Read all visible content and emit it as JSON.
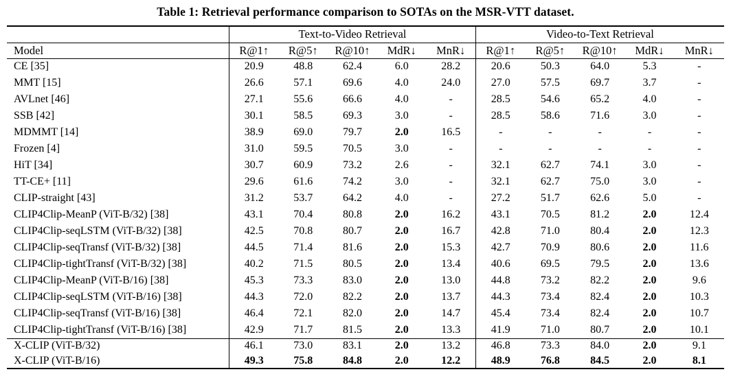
{
  "caption": "Table 1: Retrieval performance comparison to SOTAs on the MSR-VTT dataset.",
  "table": {
    "group_headers": [
      "Text-to-Video Retrieval",
      "Video-to-Text Retrieval"
    ],
    "model_header": "Model",
    "metric_headers": [
      "R@1↑",
      "R@5↑",
      "R@10↑",
      "MdR↓",
      "MnR↓"
    ],
    "missing_value": "-",
    "rows": [
      {
        "model": "CE [35]",
        "t2v": [
          "20.9",
          "48.8",
          "62.4",
          "6.0",
          "28.2"
        ],
        "v2t": [
          "20.6",
          "50.3",
          "64.0",
          "5.3",
          "-"
        ],
        "b1": [],
        "b2": []
      },
      {
        "model": "MMT [15]",
        "t2v": [
          "26.6",
          "57.1",
          "69.6",
          "4.0",
          "24.0"
        ],
        "v2t": [
          "27.0",
          "57.5",
          "69.7",
          "3.7",
          "-"
        ],
        "b1": [],
        "b2": []
      },
      {
        "model": "AVLnet [46]",
        "t2v": [
          "27.1",
          "55.6",
          "66.6",
          "4.0",
          "-"
        ],
        "v2t": [
          "28.5",
          "54.6",
          "65.2",
          "4.0",
          "-"
        ],
        "b1": [],
        "b2": []
      },
      {
        "model": "SSB [42]",
        "t2v": [
          "30.1",
          "58.5",
          "69.3",
          "3.0",
          "-"
        ],
        "v2t": [
          "28.5",
          "58.6",
          "71.6",
          "3.0",
          "-"
        ],
        "b1": [],
        "b2": []
      },
      {
        "model": "MDMMT [14]",
        "t2v": [
          "38.9",
          "69.0",
          "79.7",
          "2.0",
          "16.5"
        ],
        "v2t": [
          "-",
          "-",
          "-",
          "-",
          "-"
        ],
        "b1": [
          3
        ],
        "b2": []
      },
      {
        "model": "Frozen [4]",
        "t2v": [
          "31.0",
          "59.5",
          "70.5",
          "3.0",
          "-"
        ],
        "v2t": [
          "-",
          "-",
          "-",
          "-",
          "-"
        ],
        "b1": [],
        "b2": []
      },
      {
        "model": "HiT [34]",
        "t2v": [
          "30.7",
          "60.9",
          "73.2",
          "2.6",
          "-"
        ],
        "v2t": [
          "32.1",
          "62.7",
          "74.1",
          "3.0",
          "-"
        ],
        "b1": [],
        "b2": []
      },
      {
        "model": "TT-CE+ [11]",
        "t2v": [
          "29.6",
          "61.6",
          "74.2",
          "3.0",
          "-"
        ],
        "v2t": [
          "32.1",
          "62.7",
          "75.0",
          "3.0",
          "-"
        ],
        "b1": [],
        "b2": []
      },
      {
        "model": "CLIP-straight [43]",
        "t2v": [
          "31.2",
          "53.7",
          "64.2",
          "4.0",
          "-"
        ],
        "v2t": [
          "27.2",
          "51.7",
          "62.6",
          "5.0",
          "-"
        ],
        "b1": [],
        "b2": []
      },
      {
        "model": "CLIP4Clip-MeanP (ViT-B/32) [38]",
        "t2v": [
          "43.1",
          "70.4",
          "80.8",
          "2.0",
          "16.2"
        ],
        "v2t": [
          "43.1",
          "70.5",
          "81.2",
          "2.0",
          "12.4"
        ],
        "b1": [
          3
        ],
        "b2": [
          3
        ]
      },
      {
        "model": "CLIP4Clip-seqLSTM (ViT-B/32) [38]",
        "t2v": [
          "42.5",
          "70.8",
          "80.7",
          "2.0",
          "16.7"
        ],
        "v2t": [
          "42.8",
          "71.0",
          "80.4",
          "2.0",
          "12.3"
        ],
        "b1": [
          3
        ],
        "b2": [
          3
        ]
      },
      {
        "model": "CLIP4Clip-seqTransf (ViT-B/32) [38]",
        "t2v": [
          "44.5",
          "71.4",
          "81.6",
          "2.0",
          "15.3"
        ],
        "v2t": [
          "42.7",
          "70.9",
          "80.6",
          "2.0",
          "11.6"
        ],
        "b1": [
          3
        ],
        "b2": [
          3
        ]
      },
      {
        "model": "CLIP4Clip-tightTransf (ViT-B/32) [38]",
        "t2v": [
          "40.2",
          "71.5",
          "80.5",
          "2.0",
          "13.4"
        ],
        "v2t": [
          "40.6",
          "69.5",
          "79.5",
          "2.0",
          "13.6"
        ],
        "b1": [
          3
        ],
        "b2": [
          3
        ]
      },
      {
        "model": "CLIP4Clip-MeanP (ViT-B/16) [38]",
        "t2v": [
          "45.3",
          "73.3",
          "83.0",
          "2.0",
          "13.0"
        ],
        "v2t": [
          "44.8",
          "73.2",
          "82.2",
          "2.0",
          "9.6"
        ],
        "b1": [
          3
        ],
        "b2": [
          3
        ]
      },
      {
        "model": "CLIP4Clip-seqLSTM (ViT-B/16) [38]",
        "t2v": [
          "44.3",
          "72.0",
          "82.2",
          "2.0",
          "13.7"
        ],
        "v2t": [
          "44.3",
          "73.4",
          "82.4",
          "2.0",
          "10.3"
        ],
        "b1": [
          3
        ],
        "b2": [
          3
        ]
      },
      {
        "model": "CLIP4Clip-seqTransf (ViT-B/16) [38]",
        "t2v": [
          "46.4",
          "72.1",
          "82.0",
          "2.0",
          "14.7"
        ],
        "v2t": [
          "45.4",
          "73.4",
          "82.4",
          "2.0",
          "10.7"
        ],
        "b1": [
          3
        ],
        "b2": [
          3
        ]
      },
      {
        "model": "CLIP4Clip-tightTransf (ViT-B/16) [38]",
        "t2v": [
          "42.9",
          "71.7",
          "81.5",
          "2.0",
          "13.3"
        ],
        "v2t": [
          "41.9",
          "71.0",
          "80.7",
          "2.0",
          "10.1"
        ],
        "b1": [
          3
        ],
        "b2": [
          3
        ]
      }
    ],
    "xclip_rows": [
      {
        "model": "X-CLIP (ViT-B/32)",
        "t2v": [
          "46.1",
          "73.0",
          "83.1",
          "2.0",
          "13.2"
        ],
        "v2t": [
          "46.8",
          "73.3",
          "84.0",
          "2.0",
          "9.1"
        ],
        "b1": [
          3
        ],
        "b2": [
          3
        ]
      },
      {
        "model": "X-CLIP (ViT-B/16)",
        "t2v": [
          "49.3",
          "75.8",
          "84.8",
          "2.0",
          "12.2"
        ],
        "v2t": [
          "48.9",
          "76.8",
          "84.5",
          "2.0",
          "8.1"
        ],
        "b1": [
          0,
          1,
          2,
          3,
          4
        ],
        "b2": [
          0,
          1,
          2,
          3,
          4
        ]
      }
    ]
  }
}
